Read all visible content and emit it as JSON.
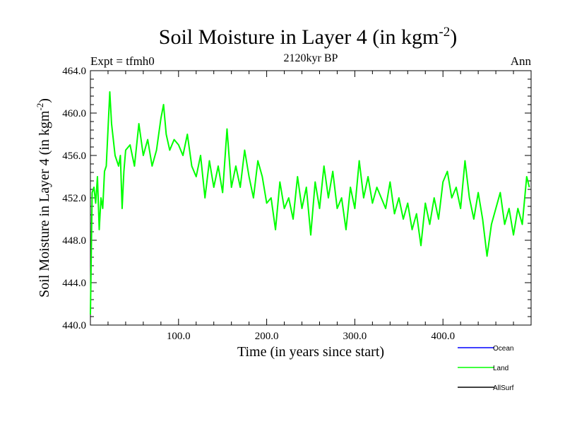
{
  "chart_data": {
    "type": "line",
    "title": "Soil Moisture in Layer 4 (in kgm",
    "title_sup": "-2",
    "title_close": ")",
    "subtitle": "2120kyr BP",
    "left_label": "Expt = tfmh0",
    "right_label": "Ann",
    "xlabel": "Time (in years since start)",
    "ylabel": "Soil Moisture in Layer 4 (in kgm",
    "ylabel_sup": "-2",
    "ylabel_close": ")",
    "xlim": [
      0,
      500
    ],
    "ylim": [
      440,
      464
    ],
    "x_ticks": [
      100,
      200,
      300,
      400
    ],
    "x_tick_labels": [
      "100.0",
      "200.0",
      "300.0",
      "400.0"
    ],
    "y_ticks": [
      440,
      444,
      448,
      452,
      456,
      460,
      464
    ],
    "y_tick_labels": [
      "440.0",
      "444.0",
      "448.0",
      "452.0",
      "456.0",
      "460.0",
      "464.0"
    ],
    "legend": [
      {
        "name": "Ocean",
        "color": "#0000ff"
      },
      {
        "name": "Land",
        "color": "#00ff00"
      },
      {
        "name": "AllSurf",
        "color": "#000000"
      }
    ],
    "series": [
      {
        "name": "Land",
        "color": "#00ff00",
        "x": [
          0,
          2,
          4,
          6,
          8,
          10,
          12,
          14,
          16,
          18,
          20,
          22,
          24,
          26,
          28,
          30,
          32,
          34,
          36,
          38,
          40,
          45,
          50,
          55,
          60,
          65,
          70,
          75,
          80,
          83,
          86,
          90,
          95,
          100,
          105,
          110,
          115,
          120,
          125,
          130,
          135,
          140,
          145,
          150,
          155,
          160,
          165,
          170,
          175,
          180,
          185,
          190,
          195,
          200,
          205,
          210,
          215,
          220,
          225,
          230,
          235,
          240,
          245,
          250,
          255,
          260,
          265,
          270,
          275,
          280,
          285,
          290,
          295,
          300,
          305,
          310,
          315,
          320,
          325,
          330,
          335,
          340,
          345,
          350,
          355,
          360,
          365,
          370,
          375,
          380,
          385,
          390,
          395,
          400,
          405,
          410,
          415,
          420,
          425,
          430,
          435,
          440,
          445,
          450,
          455,
          460,
          465,
          470,
          475,
          480,
          485,
          490,
          495,
          498
        ],
        "values": [
          441.0,
          452.5,
          453.0,
          451.5,
          454.0,
          449.0,
          452.0,
          451.0,
          454.5,
          455.0,
          458.5,
          462.0,
          459.0,
          457.5,
          456.0,
          455.5,
          455.0,
          456.0,
          451.0,
          454.5,
          456.5,
          457.0,
          455.0,
          459.0,
          456.0,
          457.5,
          455.0,
          456.5,
          459.5,
          460.8,
          458.0,
          456.5,
          457.5,
          457.0,
          456.0,
          458.0,
          455.0,
          454.0,
          456.0,
          452.0,
          455.5,
          453.0,
          455.0,
          452.5,
          458.5,
          453.0,
          455.0,
          453.0,
          456.5,
          454.0,
          452.0,
          455.5,
          454.0,
          451.5,
          452.0,
          449.0,
          453.5,
          451.0,
          452.0,
          450.0,
          454.0,
          451.0,
          453.0,
          448.5,
          453.5,
          451.0,
          455.0,
          452.0,
          454.5,
          451.0,
          452.0,
          449.0,
          453.0,
          451.0,
          455.5,
          452.0,
          454.0,
          451.5,
          453.0,
          452.0,
          451.0,
          453.5,
          450.5,
          452.0,
          450.0,
          451.5,
          449.0,
          450.5,
          447.5,
          451.5,
          449.5,
          452.0,
          450.0,
          453.5,
          454.5,
          452.0,
          453.0,
          451.0,
          455.5,
          452.0,
          450.0,
          452.5,
          450.0,
          446.5,
          449.5,
          451.0,
          452.5,
          449.5,
          451.0,
          448.5,
          451.0,
          449.5,
          454.0,
          453.0
        ]
      }
    ]
  }
}
